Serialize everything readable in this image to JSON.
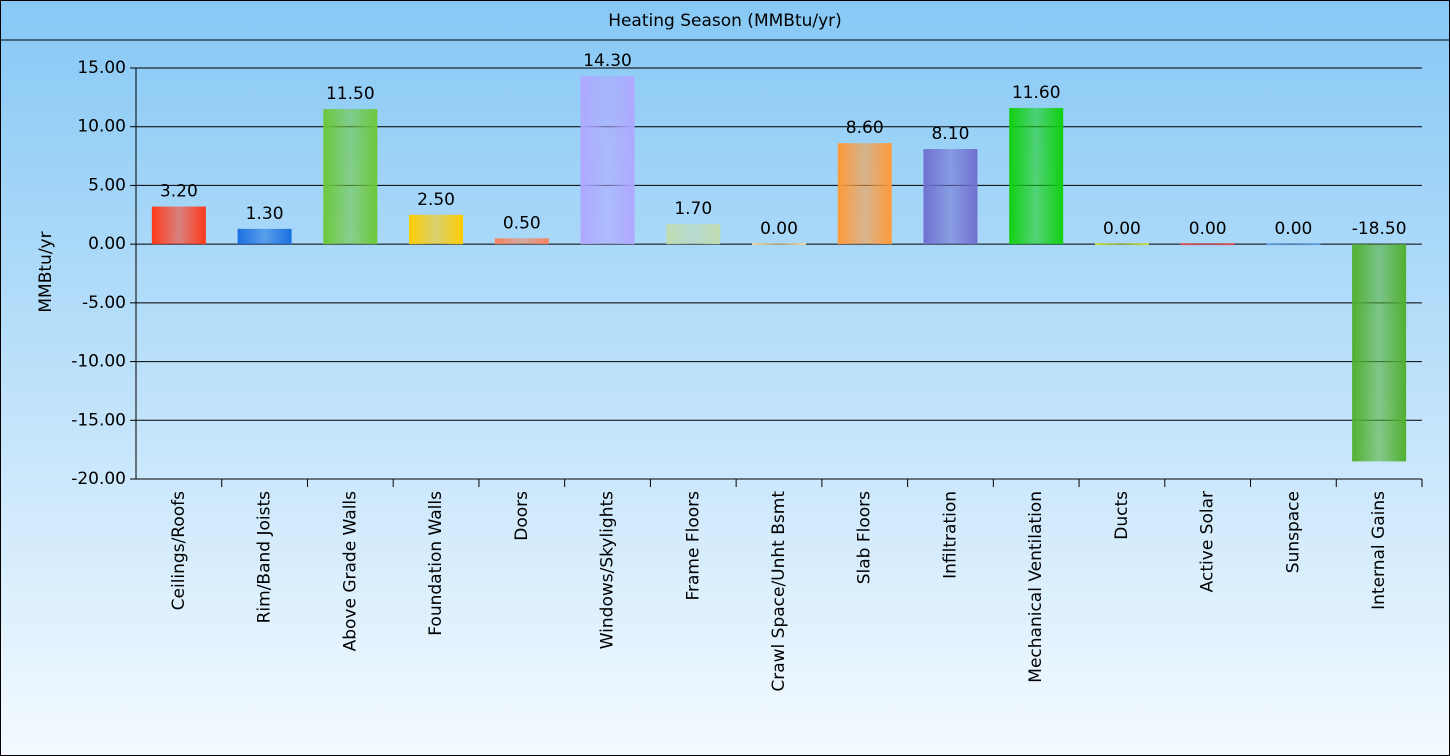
{
  "chart_data": {
    "type": "bar",
    "title": "Heating Season (MMBtu/yr)",
    "y_label": "MMBtu/yr",
    "categories": [
      "Ceilings/Roofs",
      "Rim/Band Joists",
      "Above Grade Walls",
      "Foundation Walls",
      "Doors",
      "Windows/Skylights",
      "Frame Floors",
      "Crawl Space/Unht Bsmt",
      "Slab Floors",
      "Infiltration",
      "Mechanical Ventilation",
      "Ducts",
      "Active Solar",
      "Sunspace",
      "Internal Gains"
    ],
    "values": [
      3.2,
      1.3,
      11.5,
      2.5,
      0.5,
      14.3,
      1.7,
      0,
      8.6,
      8.1,
      11.6,
      0,
      0,
      0,
      -18.5
    ],
    "value_labels": [
      "3.20",
      "1.30",
      "11.50",
      "2.50",
      "0.50",
      "14.30",
      "1.70",
      "0.00",
      "8.60",
      "8.10",
      "11.60",
      "0.00",
      "0.00",
      "0.00",
      "-18.50"
    ],
    "colors": [
      "#ff3a1a",
      "#1a6fe0",
      "#6cc83a",
      "#ffcc00",
      "#f4845f",
      "#b0a8ff",
      "#c0dcb0",
      "#f0d8a0",
      "#ff9a3a",
      "#7070d0",
      "#10d010",
      "#c8e040",
      "#e05050",
      "#60a0e0",
      "#50b030"
    ],
    "ylim": [
      -20,
      15
    ],
    "yticks": [
      {
        "value": -20,
        "label": "-20.00"
      },
      {
        "value": -15,
        "label": "-15.00"
      },
      {
        "value": -10,
        "label": "-10.00"
      },
      {
        "value": -5,
        "label": "-5.00"
      },
      {
        "value": 0,
        "label": "0.00"
      },
      {
        "value": 5,
        "label": "5.00"
      },
      {
        "value": 10,
        "label": "10.00"
      },
      {
        "value": 15,
        "label": "15.00"
      }
    ],
    "grid": true
  }
}
